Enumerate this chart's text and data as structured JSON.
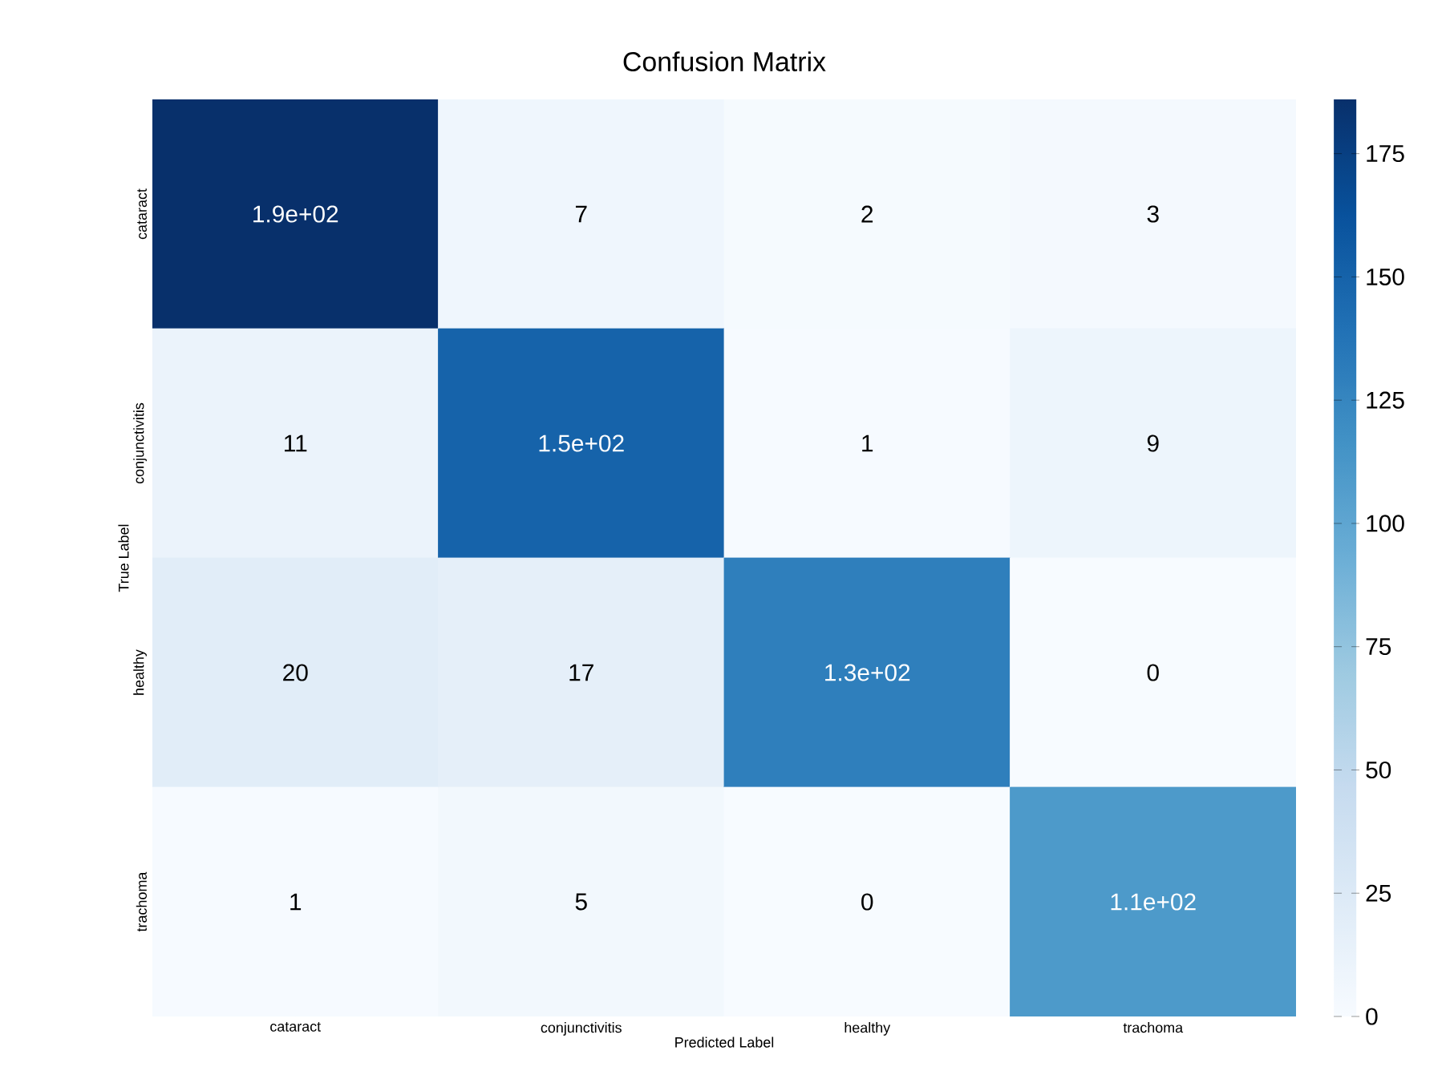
{
  "chart_data": {
    "type": "heatmap",
    "title": "Confusion Matrix",
    "xlabel": "Predicted Label",
    "ylabel": "True Label",
    "categories": [
      "cataract",
      "conjunctivitis",
      "healthy",
      "trachoma"
    ],
    "y_categories": [
      "cataract",
      "conjunctivitis",
      "healthy",
      "trachoma"
    ],
    "cells": [
      [
        186,
        7,
        2,
        3
      ],
      [
        11,
        150,
        1,
        9
      ],
      [
        20,
        17,
        130,
        0
      ],
      [
        1,
        5,
        0,
        110
      ]
    ],
    "cell_labels": [
      [
        "1.9e+02",
        "7",
        "2",
        "3"
      ],
      [
        "11",
        "1.5e+02",
        "1",
        "9"
      ],
      [
        "20",
        "17",
        "1.3e+02",
        "0"
      ],
      [
        "1",
        "5",
        "0",
        "1.1e+02"
      ]
    ],
    "clim": [
      0,
      186
    ],
    "cticks": [
      0,
      25,
      50,
      75,
      100,
      125,
      150,
      175
    ]
  }
}
